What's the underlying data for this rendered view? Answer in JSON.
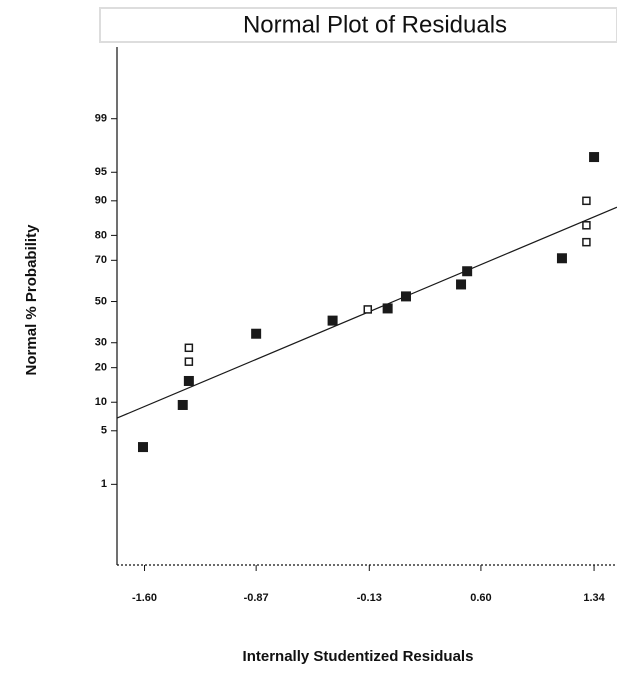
{
  "chart_data": {
    "type": "scatter",
    "title": "Normal Plot of Residuals",
    "xlabel": "Internally Studentized Residuals",
    "ylabel": "Normal % Probability",
    "yscale": "normal-probability",
    "xlim": [
      -1.78,
      1.49
    ],
    "ylim": [
      0.04,
      99.94
    ],
    "xticks": [
      {
        "value": -1.6,
        "label": "-1.60"
      },
      -0.87,
      -0.13,
      {
        "value": 0.6,
        "label": "0.60"
      },
      1.34
    ],
    "yticks": [
      1,
      5,
      10,
      20,
      30,
      50,
      70,
      80,
      90,
      95,
      99
    ],
    "series": [
      {
        "marker": "filled",
        "color": "#1a1a1a",
        "x": [
          -1.61,
          -1.35,
          -1.31,
          -0.87,
          -0.37,
          -0.01,
          0.11,
          0.47,
          0.51,
          1.13,
          1.34
        ],
        "values": [
          3.2,
          9.4,
          15.6,
          34.1,
          40.4,
          46.5,
          52.6,
          58.6,
          65,
          70.9,
          96.7
        ]
      },
      {
        "marker": "hollow",
        "color": "#1a1a1a",
        "x": [
          -1.31,
          -1.31,
          -0.14,
          1.29,
          1.29,
          1.29
        ],
        "values": [
          22.2,
          27.8,
          46,
          77.5,
          83.4,
          90
        ]
      }
    ],
    "fit_line": {
      "color": "#1a1a1a",
      "x": [
        -1.78,
        1.49
      ],
      "values": [
        6.9,
        88.5
      ]
    }
  }
}
